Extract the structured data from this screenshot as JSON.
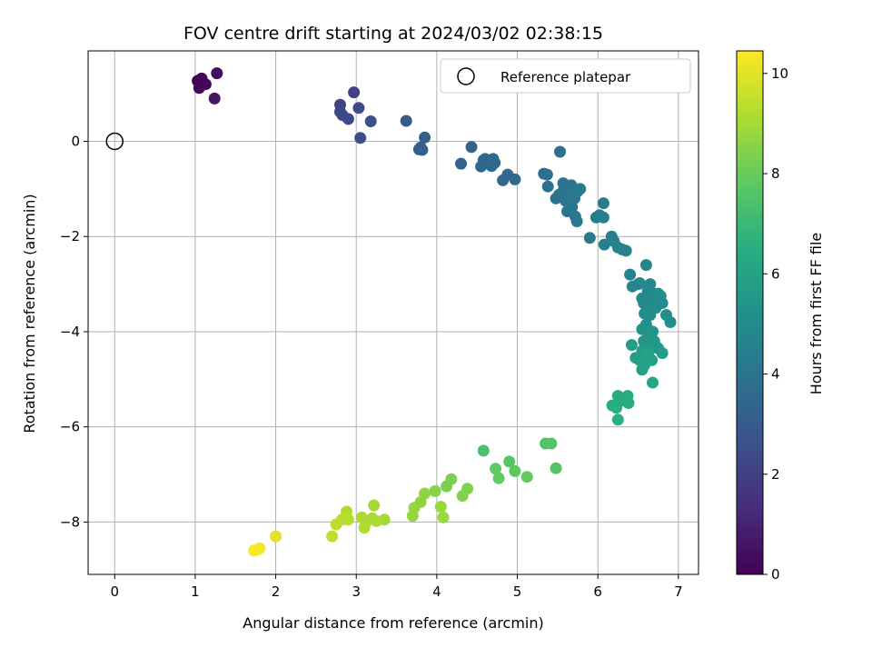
{
  "chart_data": {
    "type": "scatter",
    "title": "FOV centre drift starting at 2024/03/02 02:38:15",
    "xlabel": "Angular distance from reference (arcmin)",
    "ylabel": "Rotation from reference (arcmin)",
    "xlim": [
      -0.33,
      7.25
    ],
    "ylim": [
      -9.1,
      1.9
    ],
    "xticks": [
      0,
      1,
      2,
      3,
      4,
      5,
      6,
      7
    ],
    "yticks": [
      0,
      -2,
      -4,
      -6,
      -8
    ],
    "grid": true,
    "legend": {
      "position": "top-right",
      "entries": [
        "Reference platepar"
      ]
    },
    "reference_point": {
      "x": 0,
      "y": 0
    },
    "colorbar": {
      "label": "Hours from first FF file",
      "range": [
        0,
        10.45
      ],
      "ticks": [
        0,
        2,
        4,
        6,
        8,
        10
      ],
      "colormap": "viridis"
    },
    "series": [
      {
        "points": [
          [
            1.03,
            1.27,
            0.0
          ],
          [
            1.08,
            1.32,
            0.1
          ],
          [
            1.05,
            1.12,
            0.15
          ],
          [
            1.13,
            1.2,
            0.2
          ],
          [
            1.27,
            1.43,
            0.3
          ],
          [
            1.24,
            0.9,
            0.6
          ],
          [
            2.97,
            1.03,
            2.0
          ],
          [
            2.8,
            0.77,
            2.1
          ],
          [
            2.8,
            0.62,
            2.2
          ],
          [
            2.83,
            0.55,
            2.25
          ],
          [
            2.9,
            0.47,
            2.3
          ],
          [
            3.03,
            0.7,
            2.35
          ],
          [
            3.05,
            0.07,
            2.45
          ],
          [
            3.18,
            0.42,
            2.5
          ],
          [
            3.62,
            0.43,
            3.0
          ],
          [
            3.8,
            -0.13,
            3.05
          ],
          [
            3.82,
            -0.18,
            3.1
          ],
          [
            3.78,
            -0.17,
            3.1
          ],
          [
            3.85,
            0.08,
            3.15
          ],
          [
            4.3,
            -0.47,
            3.3
          ],
          [
            4.43,
            -0.12,
            3.3
          ],
          [
            4.55,
            -0.53,
            3.4
          ],
          [
            4.58,
            -0.4,
            3.4
          ],
          [
            4.6,
            -0.37,
            3.45
          ],
          [
            4.65,
            -0.45,
            3.45
          ],
          [
            4.68,
            -0.52,
            3.5
          ],
          [
            4.72,
            -0.45,
            3.5
          ],
          [
            4.7,
            -0.37,
            3.5
          ],
          [
            4.82,
            -0.82,
            3.55
          ],
          [
            4.88,
            -0.7,
            3.6
          ],
          [
            4.97,
            -0.8,
            3.6
          ],
          [
            5.33,
            -0.68,
            3.75
          ],
          [
            5.37,
            -0.7,
            3.8
          ],
          [
            5.38,
            -0.95,
            3.8
          ],
          [
            5.48,
            -1.2,
            3.9
          ],
          [
            5.52,
            -1.12,
            3.9
          ],
          [
            5.53,
            -0.22,
            3.85
          ],
          [
            5.57,
            -0.88,
            3.95
          ],
          [
            5.58,
            -1.0,
            4.0
          ],
          [
            5.6,
            -1.25,
            4.0
          ],
          [
            5.62,
            -1.47,
            4.05
          ],
          [
            5.63,
            -1.05,
            4.05
          ],
          [
            5.65,
            -1.3,
            4.05
          ],
          [
            5.67,
            -0.92,
            4.1
          ],
          [
            5.68,
            -1.38,
            4.1
          ],
          [
            5.7,
            -1.1,
            4.1
          ],
          [
            5.71,
            -1.2,
            4.15
          ],
          [
            5.72,
            -1.58,
            4.15
          ],
          [
            5.74,
            -1.68,
            4.2
          ],
          [
            5.75,
            -1.05,
            4.2
          ],
          [
            5.78,
            -1.0,
            4.2
          ],
          [
            5.9,
            -2.03,
            4.3
          ],
          [
            5.98,
            -1.6,
            4.35
          ],
          [
            6.02,
            -1.55,
            4.4
          ],
          [
            6.07,
            -1.3,
            4.4
          ],
          [
            6.07,
            -1.6,
            4.45
          ],
          [
            6.08,
            -2.17,
            4.45
          ],
          [
            6.17,
            -2.0,
            4.5
          ],
          [
            6.2,
            -2.1,
            4.55
          ],
          [
            6.25,
            -2.23,
            4.55
          ],
          [
            6.3,
            -2.27,
            4.6
          ],
          [
            6.35,
            -2.3,
            4.6
          ],
          [
            6.4,
            -2.8,
            4.7
          ],
          [
            6.43,
            -3.05,
            4.75
          ],
          [
            6.5,
            -3.0,
            4.8
          ],
          [
            6.52,
            -2.98,
            4.8
          ],
          [
            6.55,
            -3.3,
            4.85
          ],
          [
            6.57,
            -3.4,
            4.85
          ],
          [
            6.6,
            -2.6,
            4.8
          ],
          [
            6.62,
            -3.15,
            4.9
          ],
          [
            6.63,
            -3.45,
            4.9
          ],
          [
            6.65,
            -3.0,
            4.9
          ],
          [
            6.68,
            -3.3,
            4.95
          ],
          [
            6.7,
            -3.2,
            4.95
          ],
          [
            6.72,
            -3.5,
            5.0
          ],
          [
            6.75,
            -3.2,
            5.0
          ],
          [
            6.78,
            -3.25,
            5.0
          ],
          [
            6.8,
            -3.4,
            5.05
          ],
          [
            6.85,
            -3.65,
            5.1
          ],
          [
            6.9,
            -3.8,
            5.15
          ],
          [
            6.58,
            -3.62,
            5.1
          ],
          [
            6.6,
            -3.85,
            5.2
          ],
          [
            6.65,
            -3.65,
            5.15
          ],
          [
            6.55,
            -3.95,
            5.3
          ],
          [
            6.63,
            -4.05,
            5.35
          ],
          [
            6.68,
            -4.0,
            5.35
          ],
          [
            6.57,
            -4.2,
            5.5
          ],
          [
            6.62,
            -4.35,
            5.55
          ],
          [
            6.65,
            -4.3,
            5.55
          ],
          [
            6.7,
            -4.2,
            5.6
          ],
          [
            6.72,
            -4.3,
            5.6
          ],
          [
            6.75,
            -4.35,
            5.65
          ],
          [
            6.8,
            -4.45,
            5.7
          ],
          [
            6.42,
            -4.28,
            5.7
          ],
          [
            6.47,
            -4.55,
            5.8
          ],
          [
            6.52,
            -4.6,
            5.85
          ],
          [
            6.55,
            -4.4,
            5.85
          ],
          [
            6.58,
            -4.7,
            5.9
          ],
          [
            6.6,
            -4.55,
            5.9
          ],
          [
            6.63,
            -4.45,
            5.95
          ],
          [
            6.67,
            -4.6,
            5.95
          ],
          [
            6.55,
            -4.8,
            6.0
          ],
          [
            6.68,
            -5.07,
            6.1
          ],
          [
            6.25,
            -5.35,
            6.3
          ],
          [
            6.3,
            -5.45,
            6.35
          ],
          [
            6.35,
            -5.45,
            6.4
          ],
          [
            6.37,
            -5.35,
            6.4
          ],
          [
            6.38,
            -5.5,
            6.45
          ],
          [
            6.18,
            -5.55,
            6.5
          ],
          [
            6.23,
            -5.6,
            6.55
          ],
          [
            6.25,
            -5.85,
            6.6
          ],
          [
            4.58,
            -6.5,
            7.4
          ],
          [
            5.35,
            -6.35,
            7.5
          ],
          [
            5.42,
            -6.35,
            7.55
          ],
          [
            5.48,
            -6.87,
            7.6
          ],
          [
            4.9,
            -6.73,
            7.7
          ],
          [
            4.97,
            -6.93,
            7.8
          ],
          [
            4.73,
            -6.88,
            7.85
          ],
          [
            4.77,
            -7.08,
            7.9
          ],
          [
            5.12,
            -7.05,
            7.9
          ],
          [
            4.18,
            -7.1,
            8.3
          ],
          [
            4.12,
            -7.25,
            8.35
          ],
          [
            4.38,
            -7.3,
            8.4
          ],
          [
            4.32,
            -7.45,
            8.45
          ],
          [
            3.98,
            -7.35,
            8.5
          ],
          [
            3.85,
            -7.4,
            8.6
          ],
          [
            3.8,
            -7.58,
            8.65
          ],
          [
            3.72,
            -7.7,
            8.7
          ],
          [
            3.7,
            -7.87,
            8.75
          ],
          [
            4.05,
            -7.68,
            8.8
          ],
          [
            4.08,
            -7.9,
            8.85
          ],
          [
            3.35,
            -7.95,
            9.0
          ],
          [
            3.22,
            -7.65,
            9.0
          ],
          [
            3.2,
            -7.92,
            9.05
          ],
          [
            3.25,
            -7.98,
            9.1
          ],
          [
            3.12,
            -8.0,
            9.1
          ],
          [
            3.07,
            -7.9,
            9.15
          ],
          [
            3.1,
            -8.12,
            9.2
          ],
          [
            2.88,
            -7.78,
            9.2
          ],
          [
            2.85,
            -7.92,
            9.25
          ],
          [
            2.82,
            -7.95,
            9.3
          ],
          [
            2.9,
            -7.95,
            9.3
          ],
          [
            2.75,
            -8.05,
            9.4
          ],
          [
            2.7,
            -8.3,
            9.5
          ],
          [
            2.0,
            -8.3,
            10.0
          ],
          [
            1.8,
            -8.55,
            10.3
          ],
          [
            1.77,
            -8.58,
            10.35
          ],
          [
            1.73,
            -8.6,
            10.4
          ]
        ]
      }
    ]
  }
}
